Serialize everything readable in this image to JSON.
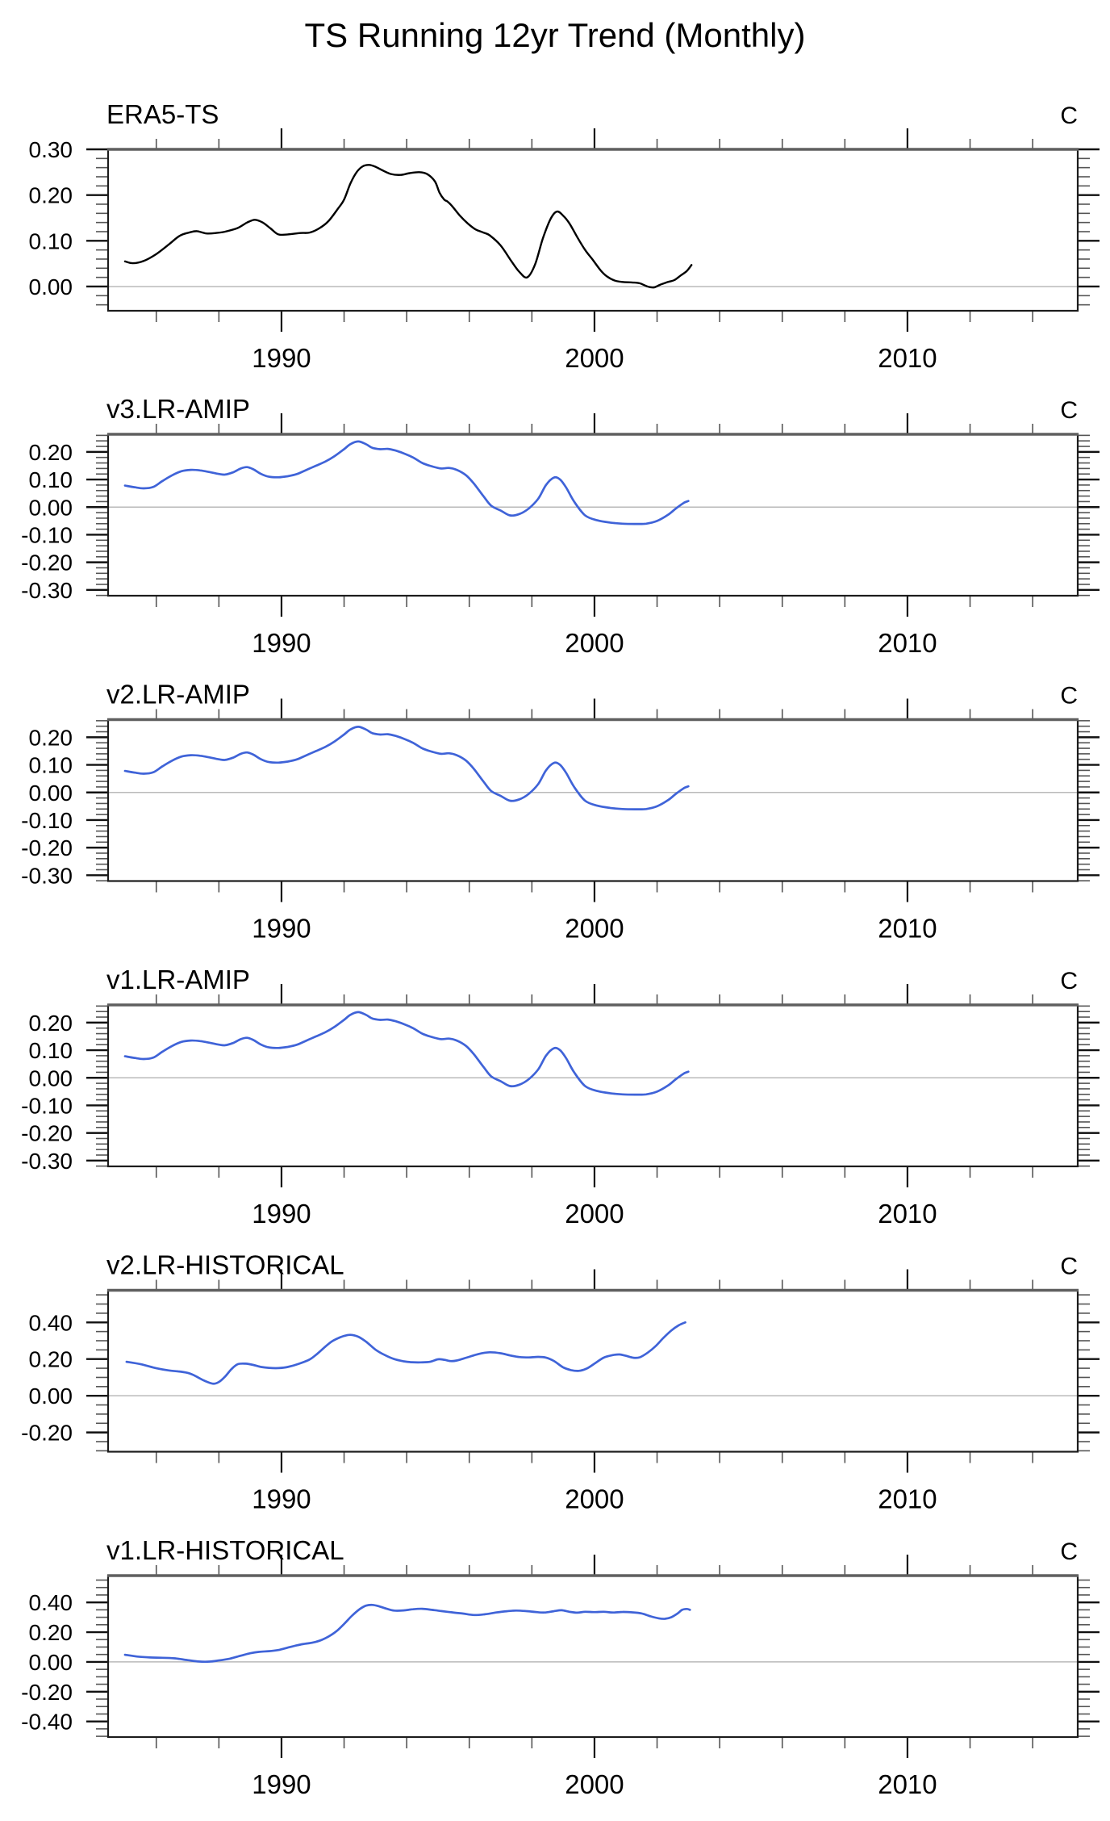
{
  "chart_data": {
    "type": "line",
    "title": "TS Running 12yr Trend (Monthly)",
    "colors": {
      "obs_line": "#000000",
      "model_line": "#3f63d8",
      "zero_line": "#bababa",
      "box": "#1c1c1c",
      "box_top": "#5f5f5f",
      "major_tick": "#111111",
      "minor_tick": "#555555"
    },
    "x_axis": {
      "range": [
        1984.46,
        2015.44
      ],
      "major_ticks": [
        1990,
        2000,
        2010
      ],
      "major_labels": [
        "1990",
        "2000",
        "2010"
      ],
      "minor_step": 2,
      "grid": false
    },
    "panels": [
      {
        "name": "ERA5-TS",
        "units": "C",
        "line_color_key": "obs_line",
        "y_top": 0.3,
        "y_bottom": -0.053,
        "y_major": [
          0.3,
          0.2,
          0.1,
          0.0
        ],
        "y_major_labels": [
          "0.30",
          "0.20",
          "0.10",
          "0.00"
        ],
        "y_minor_step": 0.02,
        "zero_line": true,
        "x": [
          1985.0,
          1985.25,
          1985.6,
          1986.0,
          1986.4,
          1986.75,
          1987.05,
          1987.3,
          1987.6,
          1987.9,
          1988.2,
          1988.6,
          1988.9,
          1989.15,
          1989.4,
          1989.65,
          1989.9,
          1990.2,
          1990.6,
          1990.9,
          1991.2,
          1991.5,
          1991.8,
          1992.0,
          1992.2,
          1992.4,
          1992.6,
          1992.8,
          1993.0,
          1993.2,
          1993.5,
          1993.8,
          1994.1,
          1994.4,
          1994.65,
          1994.9,
          1995.05,
          1995.2,
          1995.3,
          1995.45,
          1995.7,
          1995.95,
          1996.2,
          1996.45,
          1996.65,
          1997.0,
          1997.35,
          1997.6,
          1997.85,
          1998.1,
          1998.35,
          1998.6,
          1998.8,
          1999.0,
          1999.2,
          1999.45,
          1999.7,
          1999.95,
          2000.2,
          2000.4,
          2000.65,
          2000.9,
          2001.2,
          2001.45,
          2001.7,
          2001.9,
          2002.1,
          2002.35,
          2002.55,
          2002.75,
          2002.95,
          2003.1
        ],
        "y": [
          0.055,
          0.051,
          0.056,
          0.071,
          0.092,
          0.111,
          0.118,
          0.121,
          0.116,
          0.117,
          0.12,
          0.128,
          0.14,
          0.146,
          0.14,
          0.127,
          0.114,
          0.114,
          0.117,
          0.118,
          0.127,
          0.143,
          0.17,
          0.19,
          0.225,
          0.25,
          0.263,
          0.266,
          0.262,
          0.255,
          0.246,
          0.244,
          0.248,
          0.25,
          0.246,
          0.23,
          0.205,
          0.19,
          0.186,
          0.176,
          0.155,
          0.138,
          0.125,
          0.118,
          0.112,
          0.09,
          0.055,
          0.032,
          0.02,
          0.048,
          0.105,
          0.148,
          0.164,
          0.155,
          0.138,
          0.108,
          0.08,
          0.058,
          0.035,
          0.022,
          0.013,
          0.01,
          0.009,
          0.007,
          0.0,
          -0.002,
          0.004,
          0.01,
          0.014,
          0.024,
          0.034,
          0.047
        ]
      },
      {
        "name": "v3.LR-AMIP",
        "units": "C",
        "line_color_key": "model_line",
        "y_top": 0.264,
        "y_bottom": -0.321,
        "y_major": [
          0.2,
          0.1,
          0.0,
          -0.1,
          -0.2,
          -0.3
        ],
        "y_major_labels": [
          "0.20",
          "0.10",
          "0.00",
          "-0.10",
          "-0.20",
          "-0.30"
        ],
        "y_minor_step": 0.02,
        "zero_line": true,
        "x": [
          1985.0,
          1985.3,
          1985.6,
          1985.9,
          1986.2,
          1986.5,
          1986.8,
          1987.1,
          1987.4,
          1987.7,
          1988.0,
          1988.2,
          1988.45,
          1988.7,
          1988.9,
          1989.1,
          1989.35,
          1989.6,
          1989.9,
          1990.2,
          1990.5,
          1990.8,
          1991.1,
          1991.4,
          1991.7,
          1992.0,
          1992.2,
          1992.45,
          1992.7,
          1992.9,
          1993.15,
          1993.4,
          1993.65,
          1993.9,
          1994.2,
          1994.5,
          1994.8,
          1995.1,
          1995.35,
          1995.6,
          1995.9,
          1996.15,
          1996.45,
          1996.7,
          1997.0,
          1997.3,
          1997.6,
          1997.9,
          1998.2,
          1998.45,
          1998.7,
          1998.9,
          1999.1,
          1999.35,
          1999.7,
          2000.1,
          2000.5,
          2000.9,
          2001.3,
          2001.65,
          2002.0,
          2002.35,
          2002.6,
          2002.85,
          2003.0
        ],
        "y": [
          0.078,
          0.072,
          0.068,
          0.073,
          0.095,
          0.115,
          0.13,
          0.135,
          0.133,
          0.127,
          0.12,
          0.118,
          0.126,
          0.14,
          0.145,
          0.137,
          0.12,
          0.11,
          0.108,
          0.112,
          0.12,
          0.135,
          0.15,
          0.165,
          0.185,
          0.21,
          0.228,
          0.238,
          0.228,
          0.215,
          0.21,
          0.211,
          0.205,
          0.195,
          0.18,
          0.16,
          0.148,
          0.14,
          0.142,
          0.135,
          0.115,
          0.085,
          0.04,
          0.005,
          -0.012,
          -0.03,
          -0.025,
          -0.005,
          0.03,
          0.08,
          0.107,
          0.1,
          0.07,
          0.02,
          -0.03,
          -0.048,
          -0.056,
          -0.06,
          -0.061,
          -0.06,
          -0.05,
          -0.028,
          -0.005,
          0.015,
          0.022
        ]
      },
      {
        "name": "v2.LR-AMIP",
        "units": "C",
        "line_color_key": "model_line",
        "y_top": 0.264,
        "y_bottom": -0.321,
        "y_major": [
          0.2,
          0.1,
          0.0,
          -0.1,
          -0.2,
          -0.3
        ],
        "y_major_labels": [
          "0.20",
          "0.10",
          "0.00",
          "-0.10",
          "-0.20",
          "-0.30"
        ],
        "y_minor_step": 0.02,
        "zero_line": true,
        "x": [
          1985.0,
          1985.3,
          1985.6,
          1985.9,
          1986.2,
          1986.5,
          1986.8,
          1987.1,
          1987.4,
          1987.7,
          1988.0,
          1988.2,
          1988.45,
          1988.7,
          1988.9,
          1989.1,
          1989.35,
          1989.6,
          1989.9,
          1990.2,
          1990.5,
          1990.8,
          1991.1,
          1991.4,
          1991.7,
          1992.0,
          1992.2,
          1992.45,
          1992.7,
          1992.9,
          1993.15,
          1993.4,
          1993.65,
          1993.9,
          1994.2,
          1994.5,
          1994.8,
          1995.1,
          1995.35,
          1995.6,
          1995.9,
          1996.15,
          1996.45,
          1996.7,
          1997.0,
          1997.3,
          1997.6,
          1997.9,
          1998.2,
          1998.45,
          1998.7,
          1998.9,
          1999.1,
          1999.35,
          1999.7,
          2000.1,
          2000.5,
          2000.9,
          2001.3,
          2001.65,
          2002.0,
          2002.35,
          2002.6,
          2002.85,
          2003.0
        ],
        "y": [
          0.078,
          0.072,
          0.068,
          0.073,
          0.095,
          0.115,
          0.13,
          0.135,
          0.133,
          0.127,
          0.12,
          0.118,
          0.126,
          0.14,
          0.145,
          0.137,
          0.12,
          0.11,
          0.108,
          0.112,
          0.12,
          0.135,
          0.15,
          0.165,
          0.185,
          0.21,
          0.228,
          0.238,
          0.228,
          0.215,
          0.21,
          0.211,
          0.205,
          0.195,
          0.18,
          0.16,
          0.148,
          0.14,
          0.142,
          0.135,
          0.115,
          0.085,
          0.04,
          0.005,
          -0.012,
          -0.03,
          -0.025,
          -0.005,
          0.03,
          0.08,
          0.107,
          0.1,
          0.07,
          0.02,
          -0.03,
          -0.048,
          -0.056,
          -0.06,
          -0.061,
          -0.06,
          -0.05,
          -0.028,
          -0.005,
          0.015,
          0.022
        ]
      },
      {
        "name": "v1.LR-AMIP",
        "units": "C",
        "line_color_key": "model_line",
        "y_top": 0.264,
        "y_bottom": -0.321,
        "y_major": [
          0.2,
          0.1,
          0.0,
          -0.1,
          -0.2,
          -0.3
        ],
        "y_major_labels": [
          "0.20",
          "0.10",
          "0.00",
          "-0.10",
          "-0.20",
          "-0.30"
        ],
        "y_minor_step": 0.02,
        "zero_line": true,
        "x": [
          1985.0,
          1985.3,
          1985.6,
          1985.9,
          1986.2,
          1986.5,
          1986.8,
          1987.1,
          1987.4,
          1987.7,
          1988.0,
          1988.2,
          1988.45,
          1988.7,
          1988.9,
          1989.1,
          1989.35,
          1989.6,
          1989.9,
          1990.2,
          1990.5,
          1990.8,
          1991.1,
          1991.4,
          1991.7,
          1992.0,
          1992.2,
          1992.45,
          1992.7,
          1992.9,
          1993.15,
          1993.4,
          1993.65,
          1993.9,
          1994.2,
          1994.5,
          1994.8,
          1995.1,
          1995.35,
          1995.6,
          1995.9,
          1996.15,
          1996.45,
          1996.7,
          1997.0,
          1997.3,
          1997.6,
          1997.9,
          1998.2,
          1998.45,
          1998.7,
          1998.9,
          1999.1,
          1999.35,
          1999.7,
          2000.1,
          2000.5,
          2000.9,
          2001.3,
          2001.65,
          2002.0,
          2002.35,
          2002.6,
          2002.85,
          2003.0
        ],
        "y": [
          0.078,
          0.072,
          0.068,
          0.073,
          0.095,
          0.115,
          0.13,
          0.135,
          0.133,
          0.127,
          0.12,
          0.118,
          0.126,
          0.14,
          0.145,
          0.137,
          0.12,
          0.11,
          0.108,
          0.112,
          0.12,
          0.135,
          0.15,
          0.165,
          0.185,
          0.21,
          0.228,
          0.238,
          0.228,
          0.215,
          0.21,
          0.211,
          0.205,
          0.195,
          0.18,
          0.16,
          0.148,
          0.14,
          0.142,
          0.135,
          0.115,
          0.085,
          0.04,
          0.005,
          -0.012,
          -0.03,
          -0.025,
          -0.005,
          0.03,
          0.08,
          0.107,
          0.1,
          0.07,
          0.02,
          -0.03,
          -0.048,
          -0.056,
          -0.06,
          -0.061,
          -0.06,
          -0.05,
          -0.028,
          -0.005,
          0.015,
          0.022
        ]
      },
      {
        "name": "v2.LR-HISTORICAL",
        "units": "C",
        "line_color_key": "model_line",
        "y_top": 0.575,
        "y_bottom": -0.305,
        "y_major": [
          0.4,
          0.2,
          0.0,
          -0.2
        ],
        "y_major_labels": [
          "0.40",
          "0.20",
          "0.00",
          "-0.20"
        ],
        "y_minor_step": 0.05,
        "zero_line": true,
        "x": [
          1985.05,
          1985.5,
          1986.0,
          1986.4,
          1986.7,
          1987.0,
          1987.2,
          1987.5,
          1987.8,
          1988.0,
          1988.2,
          1988.4,
          1988.6,
          1988.85,
          1989.1,
          1989.35,
          1989.6,
          1989.9,
          1990.2,
          1990.55,
          1990.9,
          1991.15,
          1991.4,
          1991.6,
          1991.8,
          1992.0,
          1992.2,
          1992.45,
          1992.7,
          1993.0,
          1993.3,
          1993.6,
          1993.9,
          1994.15,
          1994.45,
          1994.75,
          1995.0,
          1995.2,
          1995.4,
          1995.6,
          1995.95,
          1996.3,
          1996.65,
          1997.0,
          1997.3,
          1997.6,
          1997.9,
          1998.2,
          1998.45,
          1998.7,
          1999.0,
          1999.25,
          1999.5,
          1999.75,
          2000.0,
          2000.3,
          2000.6,
          2000.8,
          2001.0,
          2001.25,
          2001.45,
          2001.7,
          2001.95,
          2002.2,
          2002.45,
          2002.7,
          2002.9
        ],
        "y": [
          0.185,
          0.172,
          0.15,
          0.138,
          0.133,
          0.125,
          0.112,
          0.085,
          0.066,
          0.075,
          0.105,
          0.145,
          0.172,
          0.175,
          0.168,
          0.157,
          0.152,
          0.151,
          0.157,
          0.174,
          0.198,
          0.23,
          0.268,
          0.295,
          0.313,
          0.326,
          0.332,
          0.322,
          0.295,
          0.252,
          0.222,
          0.2,
          0.188,
          0.183,
          0.182,
          0.185,
          0.199,
          0.196,
          0.189,
          0.192,
          0.21,
          0.228,
          0.237,
          0.232,
          0.22,
          0.211,
          0.209,
          0.212,
          0.208,
          0.19,
          0.155,
          0.14,
          0.136,
          0.148,
          0.175,
          0.208,
          0.222,
          0.225,
          0.218,
          0.207,
          0.21,
          0.235,
          0.27,
          0.315,
          0.355,
          0.385,
          0.4
        ]
      },
      {
        "name": "v1.LR-HISTORICAL",
        "units": "C",
        "line_color_key": "model_line",
        "y_top": 0.58,
        "y_bottom": -0.505,
        "y_major": [
          0.4,
          0.2,
          0.0,
          -0.2,
          -0.4
        ],
        "y_major_labels": [
          "0.40",
          "0.20",
          "0.00",
          "-0.20",
          "-0.40"
        ],
        "y_minor_step": 0.05,
        "zero_line": true,
        "x": [
          1985.0,
          1985.4,
          1985.8,
          1986.2,
          1986.6,
          1987.0,
          1987.35,
          1987.7,
          1988.0,
          1988.35,
          1988.7,
          1989.0,
          1989.3,
          1989.6,
          1989.9,
          1990.2,
          1990.5,
          1990.75,
          1991.0,
          1991.25,
          1991.5,
          1991.75,
          1992.0,
          1992.25,
          1992.5,
          1992.7,
          1992.9,
          1993.1,
          1993.35,
          1993.6,
          1993.9,
          1994.2,
          1994.5,
          1994.8,
          1995.1,
          1995.45,
          1995.8,
          1996.15,
          1996.5,
          1996.85,
          1997.2,
          1997.5,
          1997.8,
          1998.1,
          1998.4,
          1998.7,
          1998.95,
          1999.2,
          1999.45,
          1999.7,
          2000.0,
          2000.3,
          2000.6,
          2000.9,
          2001.2,
          2001.5,
          2001.8,
          2002.05,
          2002.25,
          2002.45,
          2002.65,
          2002.8,
          2002.95,
          2003.05
        ],
        "y": [
          0.048,
          0.036,
          0.03,
          0.028,
          0.024,
          0.012,
          0.003,
          0.002,
          0.01,
          0.022,
          0.042,
          0.058,
          0.068,
          0.072,
          0.08,
          0.096,
          0.112,
          0.122,
          0.13,
          0.145,
          0.17,
          0.205,
          0.255,
          0.31,
          0.355,
          0.378,
          0.383,
          0.375,
          0.358,
          0.345,
          0.346,
          0.354,
          0.357,
          0.35,
          0.342,
          0.333,
          0.325,
          0.315,
          0.32,
          0.332,
          0.341,
          0.345,
          0.342,
          0.336,
          0.332,
          0.341,
          0.347,
          0.337,
          0.331,
          0.337,
          0.335,
          0.337,
          0.332,
          0.336,
          0.333,
          0.326,
          0.306,
          0.293,
          0.29,
          0.3,
          0.325,
          0.35,
          0.356,
          0.35
        ]
      }
    ]
  }
}
